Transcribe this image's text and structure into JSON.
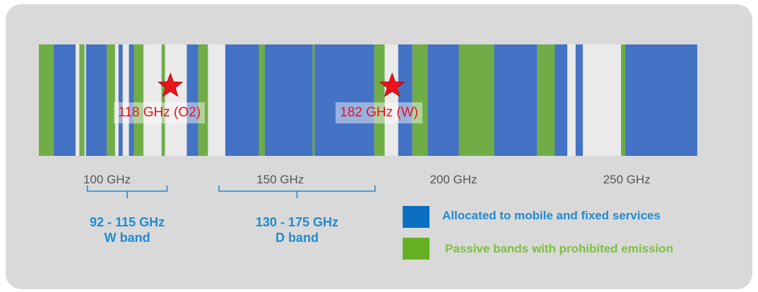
{
  "colors": {
    "allocated": "#4472c4",
    "passive": "#70ad47",
    "unallocated": "#eaeaea",
    "panel": "#d9d9d9",
    "marker": "#e8131b",
    "range_text": "#1f8ad1",
    "legend_allocated_text": "#1f8ad1",
    "legend_passive_text": "#7cbf3d"
  },
  "axis": {
    "unit": "GHz",
    "ticks": [
      {
        "value": 100,
        "label": "100 GHz"
      },
      {
        "value": 150,
        "label": "150 GHz"
      },
      {
        "value": 200,
        "label": "200 GHz"
      },
      {
        "value": 250,
        "label": "250 GHz"
      }
    ]
  },
  "bands": [
    {
      "from": 78.0,
      "to": 82.3,
      "type": "passive"
    },
    {
      "from": 82.3,
      "to": 88.6,
      "type": "allocated"
    },
    {
      "from": 88.6,
      "to": 89.7,
      "type": "unallocated"
    },
    {
      "from": 89.7,
      "to": 91.2,
      "type": "passive"
    },
    {
      "from": 91.2,
      "to": 91.6,
      "type": "unallocated"
    },
    {
      "from": 91.6,
      "to": 97.6,
      "type": "allocated"
    },
    {
      "from": 97.6,
      "to": 100.0,
      "type": "passive"
    },
    {
      "from": 100.0,
      "to": 101.0,
      "type": "unallocated"
    },
    {
      "from": 101.0,
      "to": 102.2,
      "type": "allocated"
    },
    {
      "from": 102.2,
      "to": 104.0,
      "type": "unallocated"
    },
    {
      "from": 104.0,
      "to": 105.4,
      "type": "allocated"
    },
    {
      "from": 105.4,
      "to": 108.2,
      "type": "passive"
    },
    {
      "from": 108.2,
      "to": 113.4,
      "type": "unallocated"
    },
    {
      "from": 113.4,
      "to": 114.4,
      "type": "passive"
    },
    {
      "from": 114.4,
      "to": 120.7,
      "type": "unallocated"
    },
    {
      "from": 120.7,
      "to": 124.0,
      "type": "allocated"
    },
    {
      "from": 124.0,
      "to": 126.8,
      "type": "passive"
    },
    {
      "from": 126.8,
      "to": 131.8,
      "type": "unallocated"
    },
    {
      "from": 131.8,
      "to": 141.5,
      "type": "allocated"
    },
    {
      "from": 141.5,
      "to": 143.2,
      "type": "passive"
    },
    {
      "from": 143.2,
      "to": 157.0,
      "type": "allocated"
    },
    {
      "from": 157.0,
      "to": 157.6,
      "type": "passive"
    },
    {
      "from": 157.6,
      "to": 174.8,
      "type": "allocated"
    },
    {
      "from": 174.8,
      "to": 177.8,
      "type": "passive"
    },
    {
      "from": 177.8,
      "to": 181.7,
      "type": "unallocated"
    },
    {
      "from": 181.7,
      "to": 185.8,
      "type": "allocated"
    },
    {
      "from": 185.8,
      "to": 190.2,
      "type": "passive"
    },
    {
      "from": 190.2,
      "to": 199.2,
      "type": "allocated"
    },
    {
      "from": 199.2,
      "to": 209.4,
      "type": "passive"
    },
    {
      "from": 209.4,
      "to": 221.8,
      "type": "allocated"
    },
    {
      "from": 221.8,
      "to": 226.9,
      "type": "passive"
    },
    {
      "from": 226.9,
      "to": 230.5,
      "type": "allocated"
    },
    {
      "from": 230.5,
      "to": 232.9,
      "type": "unallocated"
    },
    {
      "from": 232.9,
      "to": 235.0,
      "type": "allocated"
    },
    {
      "from": 235.0,
      "to": 246.0,
      "type": "unallocated"
    },
    {
      "from": 246.0,
      "to": 247.2,
      "type": "passive"
    },
    {
      "from": 247.2,
      "to": 268.0,
      "type": "allocated"
    }
  ],
  "markers": [
    {
      "frequency": 118,
      "label": "118 GHz (O2)"
    },
    {
      "frequency": 182,
      "label": "182 GHz (W)"
    }
  ],
  "ranges": [
    {
      "from": 92,
      "to": 115,
      "line1": "92 - 115 GHz",
      "line2": "W band"
    },
    {
      "from": 130,
      "to": 175,
      "line1": "130 - 175 GHz",
      "line2": "D band"
    }
  ],
  "legend": [
    {
      "key": "allocated",
      "label": "Allocated to mobile and fixed services"
    },
    {
      "key": "passive",
      "label": "Passive bands with prohibited emission"
    }
  ]
}
